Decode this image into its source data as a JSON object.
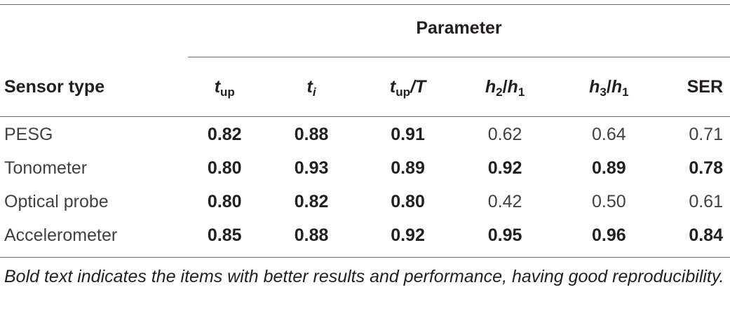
{
  "table": {
    "group_header": "Parameter",
    "columns": {
      "sensor_type": "Sensor type",
      "t_up": {
        "base": "t",
        "sub": "up"
      },
      "t_i": {
        "base": "t",
        "sub": "i"
      },
      "t_up_over_T": {
        "base": "t",
        "sub": "up",
        "rest": "/T"
      },
      "h2_over_h1": {
        "a": "h",
        "a_sub": "2",
        "slash": "/",
        "b": "h",
        "b_sub": "1"
      },
      "h3_over_h1": {
        "a": "h",
        "a_sub": "3",
        "slash": "/",
        "b": "h",
        "b_sub": "1"
      },
      "ser": "SER"
    },
    "rows": [
      {
        "sensor": "PESG",
        "cells": [
          "0.82",
          "0.88",
          "0.91",
          "0.62",
          "0.64",
          "0.71"
        ],
        "bold": [
          true,
          true,
          true,
          false,
          false,
          false
        ]
      },
      {
        "sensor": "Tonometer",
        "cells": [
          "0.80",
          "0.93",
          "0.89",
          "0.92",
          "0.89",
          "0.78"
        ],
        "bold": [
          true,
          true,
          true,
          true,
          true,
          true
        ]
      },
      {
        "sensor": "Optical probe",
        "cells": [
          "0.80",
          "0.82",
          "0.80",
          "0.42",
          "0.50",
          "0.61"
        ],
        "bold": [
          true,
          true,
          true,
          false,
          false,
          false
        ]
      },
      {
        "sensor": "Accelerometer",
        "cells": [
          "0.85",
          "0.88",
          "0.92",
          "0.95",
          "0.96",
          "0.84"
        ],
        "bold": [
          true,
          true,
          true,
          true,
          true,
          true
        ]
      }
    ]
  },
  "footnote": "Bold text indicates the items with better results and performance, having good reproducibility."
}
